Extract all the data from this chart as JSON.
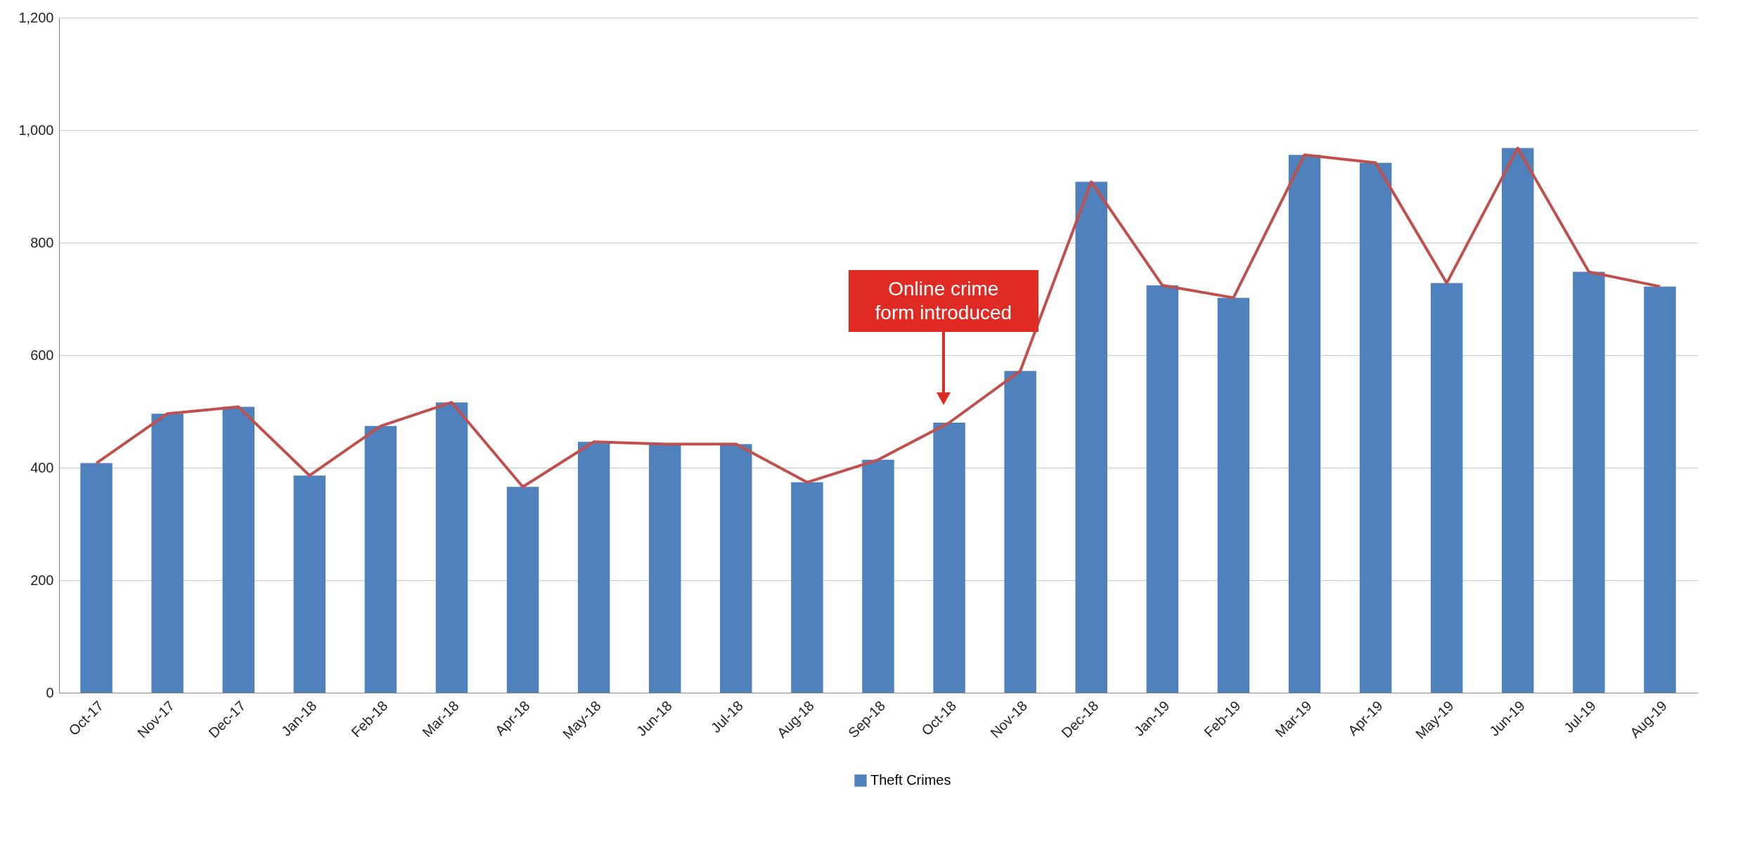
{
  "chart_data": {
    "type": "bar",
    "categories": [
      "Oct-17",
      "Nov-17",
      "Dec-17",
      "Jan-18",
      "Feb-18",
      "Mar-18",
      "Apr-18",
      "May-18",
      "Jun-18",
      "Jul-18",
      "Aug-18",
      "Sep-18",
      "Oct-18",
      "Nov-18",
      "Dec-18",
      "Jan-19",
      "Feb-19",
      "Mar-19",
      "Apr-19",
      "May-19",
      "Jun-19",
      "Jul-19",
      "Aug-19"
    ],
    "series": [
      {
        "name": "Theft Crimes",
        "color": "#4f81bd",
        "values": [
          408,
          496,
          508,
          386,
          474,
          516,
          366,
          446,
          442,
          442,
          374,
          414,
          480,
          572,
          908,
          724,
          702,
          956,
          942,
          728,
          968,
          748,
          722
        ]
      },
      {
        "type": "line",
        "color": "#c0504d",
        "values": [
          408,
          496,
          508,
          386,
          474,
          516,
          366,
          446,
          442,
          442,
          374,
          414,
          480,
          572,
          908,
          724,
          702,
          956,
          942,
          728,
          968,
          748,
          722
        ]
      }
    ],
    "ylim": [
      0,
      1200
    ],
    "yticks": [
      {
        "value": 0,
        "label": "0"
      },
      {
        "value": 200,
        "label": "200"
      },
      {
        "value": 400,
        "label": "400"
      },
      {
        "value": 600,
        "label": "600"
      },
      {
        "value": 800,
        "label": "800"
      },
      {
        "value": 1000,
        "label": "1,000"
      },
      {
        "value": 1200,
        "label": "1,200"
      }
    ],
    "grid": "y",
    "legend": "bottom",
    "marker": "none",
    "line_style": "solid",
    "annotations": [
      "Online crime form introduced"
    ]
  }
}
